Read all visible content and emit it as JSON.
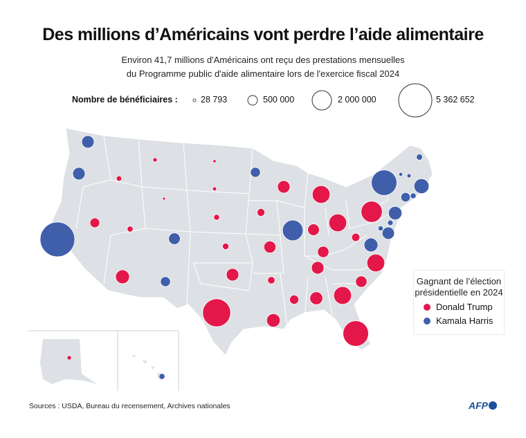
{
  "title": "Des millions d’Américains vont perdre l’aide alimentaire",
  "subtitle_line1": "Environ 41,7 millions d'Américains ont reçu des prestations mensuelles",
  "subtitle_line2": "du Programme public d'aide alimentaire lors de l'exercice fiscal 2024",
  "size_legend": {
    "label": "Nombre de bénéficiaires :",
    "items": [
      {
        "value": 28793,
        "text": "28 793"
      },
      {
        "value": 500000,
        "text": "500 000"
      },
      {
        "value": 2000000,
        "text": "2 000 000"
      },
      {
        "value": 5362652,
        "text": "5 362 652"
      }
    ]
  },
  "party_legend": {
    "title_line1": "Gagnant de l’élection",
    "title_line2": "présidentielle en 2024",
    "trump": "Donald Trump",
    "harris": "Kamala Harris"
  },
  "colors": {
    "trump": "#e3174a",
    "harris": "#3f5fab",
    "land": "#dde0e4",
    "border": "#ffffff"
  },
  "states": [
    {
      "code": "WA",
      "winner": "harris",
      "beneficiaries": 700000
    },
    {
      "code": "OR",
      "winner": "harris",
      "beneficiaries": 700000
    },
    {
      "code": "CA",
      "winner": "harris",
      "beneficiaries": 5362652
    },
    {
      "code": "NV",
      "winner": "trump",
      "beneficiaries": 420000
    },
    {
      "code": "ID",
      "winner": "trump",
      "beneficiaries": 130000
    },
    {
      "code": "MT",
      "winner": "trump",
      "beneficiaries": 80000
    },
    {
      "code": "WY",
      "winner": "trump",
      "beneficiaries": 28793
    },
    {
      "code": "UT",
      "winner": "trump",
      "beneficiaries": 160000
    },
    {
      "code": "AZ",
      "winner": "trump",
      "beneficiaries": 860000
    },
    {
      "code": "CO",
      "winner": "harris",
      "beneficiaries": 600000
    },
    {
      "code": "NM",
      "winner": "harris",
      "beneficiaries": 450000
    },
    {
      "code": "ND",
      "winner": "trump",
      "beneficiaries": 45000
    },
    {
      "code": "SD",
      "winner": "trump",
      "beneficiaries": 70000
    },
    {
      "code": "NE",
      "winner": "trump",
      "beneficiaries": 150000
    },
    {
      "code": "KS",
      "winner": "trump",
      "beneficiaries": 190000
    },
    {
      "code": "OK",
      "winner": "trump",
      "beneficiaries": 690000
    },
    {
      "code": "TX",
      "winner": "trump",
      "beneficiaries": 3500000
    },
    {
      "code": "MN",
      "winner": "harris",
      "beneficiaries": 440000
    },
    {
      "code": "IA",
      "winner": "trump",
      "beneficiaries": 270000
    },
    {
      "code": "MO",
      "winner": "trump",
      "beneficiaries": 650000
    },
    {
      "code": "AR",
      "winner": "trump",
      "beneficiaries": 240000
    },
    {
      "code": "LA",
      "winner": "trump",
      "beneficiaries": 800000
    },
    {
      "code": "WI",
      "winner": "trump",
      "beneficiaries": 700000
    },
    {
      "code": "IL",
      "winner": "harris",
      "beneficiaries": 1900000
    },
    {
      "code": "MI",
      "winner": "trump",
      "beneficiaries": 1400000
    },
    {
      "code": "IN",
      "winner": "trump",
      "beneficiaries": 600000
    },
    {
      "code": "OH",
      "winner": "trump",
      "beneficiaries": 1400000
    },
    {
      "code": "KY",
      "winner": "trump",
      "beneficiaries": 580000
    },
    {
      "code": "TN",
      "winner": "trump",
      "beneficiaries": 690000
    },
    {
      "code": "MS",
      "winner": "trump",
      "beneficiaries": 370000
    },
    {
      "code": "AL",
      "winner": "trump",
      "beneficiaries": 750000
    },
    {
      "code": "GA",
      "winner": "trump",
      "beneficiaries": 1400000
    },
    {
      "code": "FL",
      "winner": "trump",
      "beneficiaries": 2900000
    },
    {
      "code": "SC",
      "winner": "trump",
      "beneficiaries": 570000
    },
    {
      "code": "NC",
      "winner": "trump",
      "beneficiaries": 1400000
    },
    {
      "code": "VA",
      "winner": "harris",
      "beneficiaries": 850000
    },
    {
      "code": "WV",
      "winner": "trump",
      "beneficiaries": 300000
    },
    {
      "code": "PA",
      "winner": "trump",
      "beneficiaries": 2000000
    },
    {
      "code": "NY",
      "winner": "harris",
      "beneficiaries": 2900000
    },
    {
      "code": "NJ",
      "winner": "harris",
      "beneficiaries": 800000
    },
    {
      "code": "DE",
      "winner": "harris",
      "beneficiaries": 120000
    },
    {
      "code": "MD",
      "winner": "harris",
      "beneficiaries": 680000
    },
    {
      "code": "DC",
      "winner": "harris",
      "beneficiaries": 140000
    },
    {
      "code": "CT",
      "winner": "harris",
      "beneficiaries": 400000
    },
    {
      "code": "RI",
      "winner": "harris",
      "beneficiaries": 150000
    },
    {
      "code": "MA",
      "winner": "harris",
      "beneficiaries": 1000000
    },
    {
      "code": "VT",
      "winner": "harris",
      "beneficiaries": 65000
    },
    {
      "code": "NH",
      "winner": "harris",
      "beneficiaries": 75000
    },
    {
      "code": "ME",
      "winner": "harris",
      "beneficiaries": 170000
    },
    {
      "code": "AK",
      "winner": "trump",
      "beneficiaries": 90000
    },
    {
      "code": "HI",
      "winner": "harris",
      "beneficiaries": 160000
    }
  ],
  "source": "Sources : USDA, Bureau du recensement, Archives nationales",
  "logo": "AFP"
}
